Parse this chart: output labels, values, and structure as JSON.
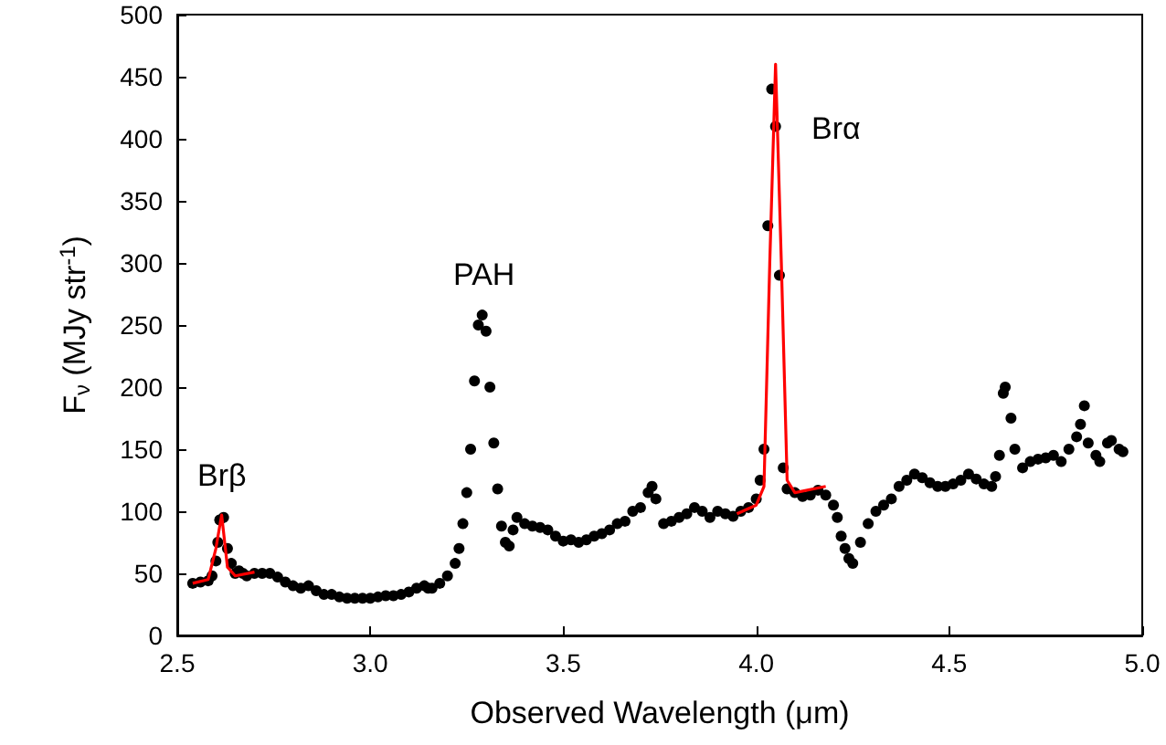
{
  "chart_data": {
    "type": "scatter",
    "xlabel": "Observed Wavelength (μm)",
    "ylabel": "F$_{ν}$ (MJy str$^{-1}$)",
    "xlim": [
      2.5,
      5.0
    ],
    "xticks": [
      2.5,
      {
        "value": 3,
        "label": "3.0"
      },
      3.5,
      {
        "value": 4,
        "label": "4.0"
      },
      4.5,
      {
        "value": 5,
        "label": "5.0"
      }
    ],
    "ylim": [
      0,
      500
    ],
    "yticks": [
      0,
      50,
      100,
      150,
      200,
      250,
      300,
      350,
      400,
      450,
      500
    ],
    "grid": false,
    "annotations": [
      "Brβ",
      "PAH",
      "Brα"
    ],
    "series": [
      {
        "color": "#000000",
        "marker": "circle",
        "x": [
          2.54,
          2.56,
          2.58,
          2.59,
          2.6,
          2.605,
          2.61,
          2.62,
          2.63,
          2.64,
          2.65,
          2.66,
          2.67,
          2.68,
          2.7,
          2.72,
          2.74,
          2.76,
          2.78,
          2.8,
          2.82,
          2.84,
          2.86,
          2.88,
          2.9,
          2.92,
          2.94,
          2.96,
          2.98,
          3.0,
          3.02,
          3.04,
          3.06,
          3.08,
          3.1,
          3.12,
          3.14,
          3.15,
          3.16,
          3.18,
          3.2,
          3.22,
          3.23,
          3.24,
          3.25,
          3.26,
          3.27,
          3.28,
          3.29,
          3.3,
          3.31,
          3.32,
          3.33,
          3.34,
          3.35,
          3.36,
          3.37,
          3.38,
          3.4,
          3.42,
          3.44,
          3.46,
          3.48,
          3.5,
          3.52,
          3.54,
          3.56,
          3.58,
          3.6,
          3.62,
          3.64,
          3.66,
          3.68,
          3.7,
          3.72,
          3.73,
          3.74,
          3.76,
          3.78,
          3.8,
          3.82,
          3.84,
          3.86,
          3.88,
          3.9,
          3.92,
          3.94,
          3.96,
          3.98,
          4.0,
          4.01,
          4.02,
          4.03,
          4.04,
          4.05,
          4.06,
          4.07,
          4.08,
          4.1,
          4.12,
          4.14,
          4.16,
          4.18,
          4.2,
          4.21,
          4.22,
          4.23,
          4.24,
          4.25,
          4.27,
          4.29,
          4.31,
          4.33,
          4.35,
          4.37,
          4.39,
          4.41,
          4.43,
          4.45,
          4.47,
          4.49,
          4.51,
          4.53,
          4.55,
          4.57,
          4.59,
          4.61,
          4.62,
          4.63,
          4.64,
          4.645,
          4.66,
          4.67,
          4.69,
          4.71,
          4.73,
          4.75,
          4.77,
          4.79,
          4.81,
          4.83,
          4.84,
          4.85,
          4.86,
          4.88,
          4.89,
          4.91,
          4.92,
          4.94,
          4.95
        ],
        "values": [
          42,
          43,
          44,
          48,
          60,
          75,
          93,
          95,
          70,
          58,
          50,
          52,
          50,
          48,
          50,
          50,
          50,
          47,
          43,
          40,
          38,
          40,
          36,
          33,
          33,
          31,
          30,
          30,
          30,
          30,
          31,
          32,
          32,
          33,
          35,
          38,
          40,
          38,
          38,
          42,
          48,
          58,
          70,
          90,
          115,
          150,
          205,
          250,
          258,
          245,
          200,
          155,
          118,
          88,
          75,
          72,
          85,
          95,
          90,
          88,
          87,
          85,
          80,
          76,
          77,
          75,
          77,
          80,
          82,
          85,
          90,
          92,
          100,
          103,
          115,
          120,
          110,
          90,
          92,
          95,
          98,
          103,
          100,
          95,
          100,
          98,
          96,
          100,
          103,
          110,
          125,
          150,
          330,
          440,
          410,
          290,
          135,
          118,
          115,
          112,
          113,
          117,
          113,
          105,
          95,
          80,
          70,
          62,
          58,
          75,
          90,
          100,
          105,
          110,
          120,
          125,
          130,
          127,
          123,
          120,
          120,
          122,
          125,
          130,
          126,
          122,
          120,
          128,
          145,
          195,
          200,
          175,
          150,
          135,
          140,
          142,
          143,
          145,
          140,
          150,
          160,
          170,
          185,
          155,
          145,
          140,
          155,
          157,
          150,
          148
        ]
      },
      {
        "type": "line",
        "color": "#ff0000",
        "marker": "none",
        "x": [
          2.54,
          2.58,
          2.6,
          2.615,
          2.63,
          2.65,
          2.7
        ],
        "values": [
          42,
          45,
          70,
          97,
          55,
          48,
          51
        ]
      },
      {
        "type": "line",
        "color": "#ff0000",
        "marker": "none",
        "x": [
          3.95,
          4.0,
          4.02,
          4.035,
          4.05,
          4.065,
          4.08,
          4.1,
          4.18
        ],
        "values": [
          98,
          105,
          120,
          300,
          460,
          300,
          125,
          115,
          120
        ]
      }
    ]
  }
}
